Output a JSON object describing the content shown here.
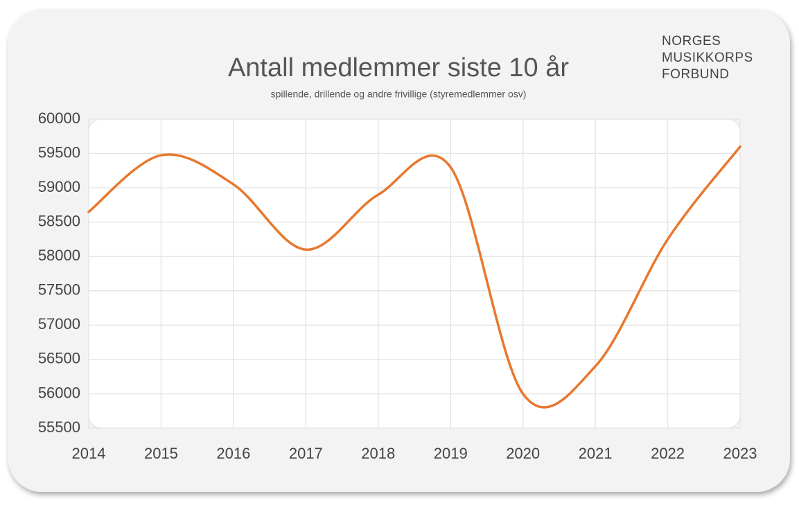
{
  "chart_data": {
    "type": "line",
    "title": "Antall medlemmer siste 10 år",
    "subtitle": "spillende, drillende og andre frivillige (styremedlemmer osv)",
    "logo": [
      "NORGES",
      "MUSIKKORPS",
      "FORBUND"
    ],
    "x": [
      2014,
      2015,
      2016,
      2017,
      2018,
      2019,
      2020,
      2021,
      2022,
      2023
    ],
    "series": [
      {
        "color": "#e8772e",
        "values": [
          58650,
          59475,
          59050,
          58100,
          58900,
          59300,
          56000,
          56400,
          58250,
          59600
        ]
      }
    ],
    "xlim": [
      2014,
      2023
    ],
    "xticks": [
      2014,
      2015,
      2016,
      2017,
      2018,
      2019,
      2020,
      2021,
      2022,
      2023
    ],
    "ylim": [
      55500,
      60000
    ],
    "yticks": [
      55500,
      56000,
      56500,
      57000,
      57500,
      58000,
      58500,
      59000,
      59500,
      60000
    ],
    "grid": true
  }
}
